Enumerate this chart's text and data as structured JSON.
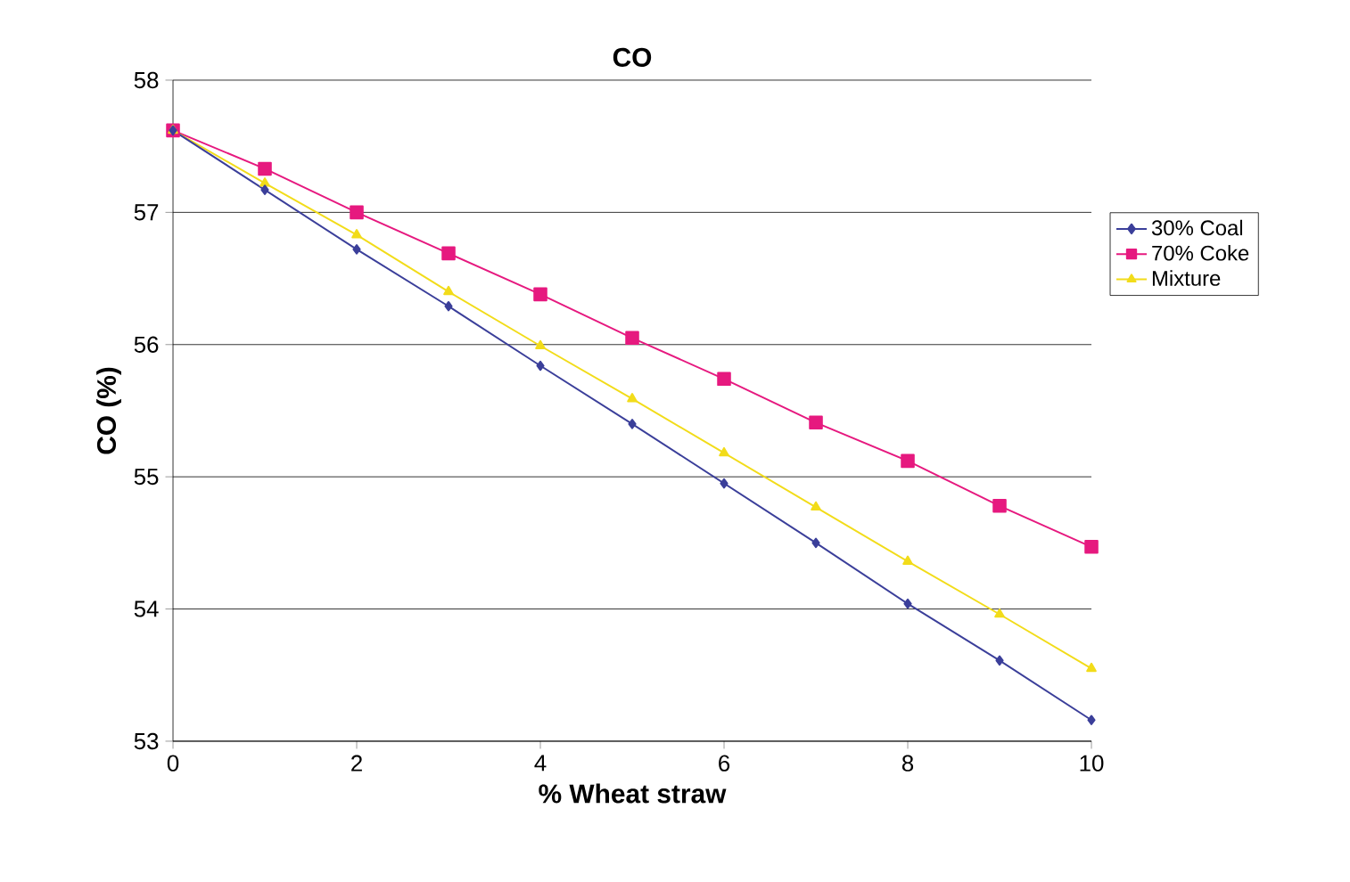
{
  "chart_data": {
    "type": "line",
    "title": "CO",
    "xlabel": "% Wheat straw",
    "ylabel": "CO (%)",
    "x": [
      0,
      1,
      2,
      3,
      4,
      5,
      6,
      7,
      8,
      9,
      10
    ],
    "series": [
      {
        "name": "30% Coal",
        "color": "#3b3f9a",
        "marker": "diamond",
        "values": [
          57.62,
          57.17,
          56.72,
          56.29,
          55.84,
          55.4,
          54.95,
          54.5,
          54.04,
          53.61,
          53.16
        ]
      },
      {
        "name": "70% Coke",
        "color": "#e6197f",
        "marker": "square",
        "values": [
          57.62,
          57.33,
          57.0,
          56.69,
          56.38,
          56.05,
          55.74,
          55.41,
          55.12,
          54.78,
          54.47
        ]
      },
      {
        "name": "Mixture",
        "color": "#f2dc1a",
        "marker": "triangle",
        "values": [
          57.62,
          57.22,
          56.83,
          56.4,
          55.99,
          55.59,
          55.18,
          54.77,
          54.36,
          53.96,
          53.55
        ]
      }
    ],
    "xlim": [
      0,
      10
    ],
    "xticks": [
      0,
      2,
      4,
      6,
      8,
      10
    ],
    "ylim": [
      53,
      58
    ],
    "yticks": [
      53,
      54,
      55,
      56,
      57,
      58
    ],
    "grid": "y",
    "legend": "right",
    "line_style": "solid"
  }
}
